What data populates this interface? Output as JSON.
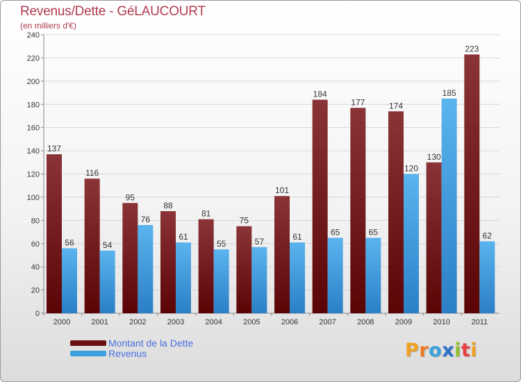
{
  "chart_data": {
    "type": "bar",
    "title": "Revenus/Dette - GéLAUCOURT",
    "subtitle": "(en milliers d'€)",
    "categories": [
      "2000",
      "2001",
      "2002",
      "2003",
      "2004",
      "2005",
      "2006",
      "2007",
      "2008",
      "2009",
      "2010",
      "2011"
    ],
    "series": [
      {
        "name": "Montant de la Dette",
        "color": "#7b1f23",
        "values": [
          137,
          116,
          95,
          88,
          81,
          75,
          101,
          184,
          177,
          174,
          130,
          223
        ]
      },
      {
        "name": "Revenus",
        "color": "#3d9ee0",
        "values": [
          56,
          54,
          76,
          61,
          55,
          57,
          61,
          65,
          65,
          120,
          185,
          62
        ]
      }
    ],
    "ylim": [
      0,
      240
    ],
    "yticks": [
      0,
      20,
      40,
      60,
      80,
      100,
      120,
      140,
      160,
      180,
      200,
      220,
      240
    ],
    "grid": true,
    "legend_position": "bottom-left"
  },
  "legend": {
    "items": [
      {
        "label": "Montant de la Dette",
        "color": "#6b0f14"
      },
      {
        "label": "Revenus",
        "color": "#3d9ee0"
      }
    ]
  },
  "logo": {
    "letters": [
      "P",
      "r",
      "o",
      "x",
      "i",
      "t",
      "i"
    ],
    "colors": [
      "#f0a020",
      "#f07820",
      "#3aa0e0",
      "#2a70c8",
      "#90c030",
      "#e84040",
      "#f0a020"
    ]
  }
}
